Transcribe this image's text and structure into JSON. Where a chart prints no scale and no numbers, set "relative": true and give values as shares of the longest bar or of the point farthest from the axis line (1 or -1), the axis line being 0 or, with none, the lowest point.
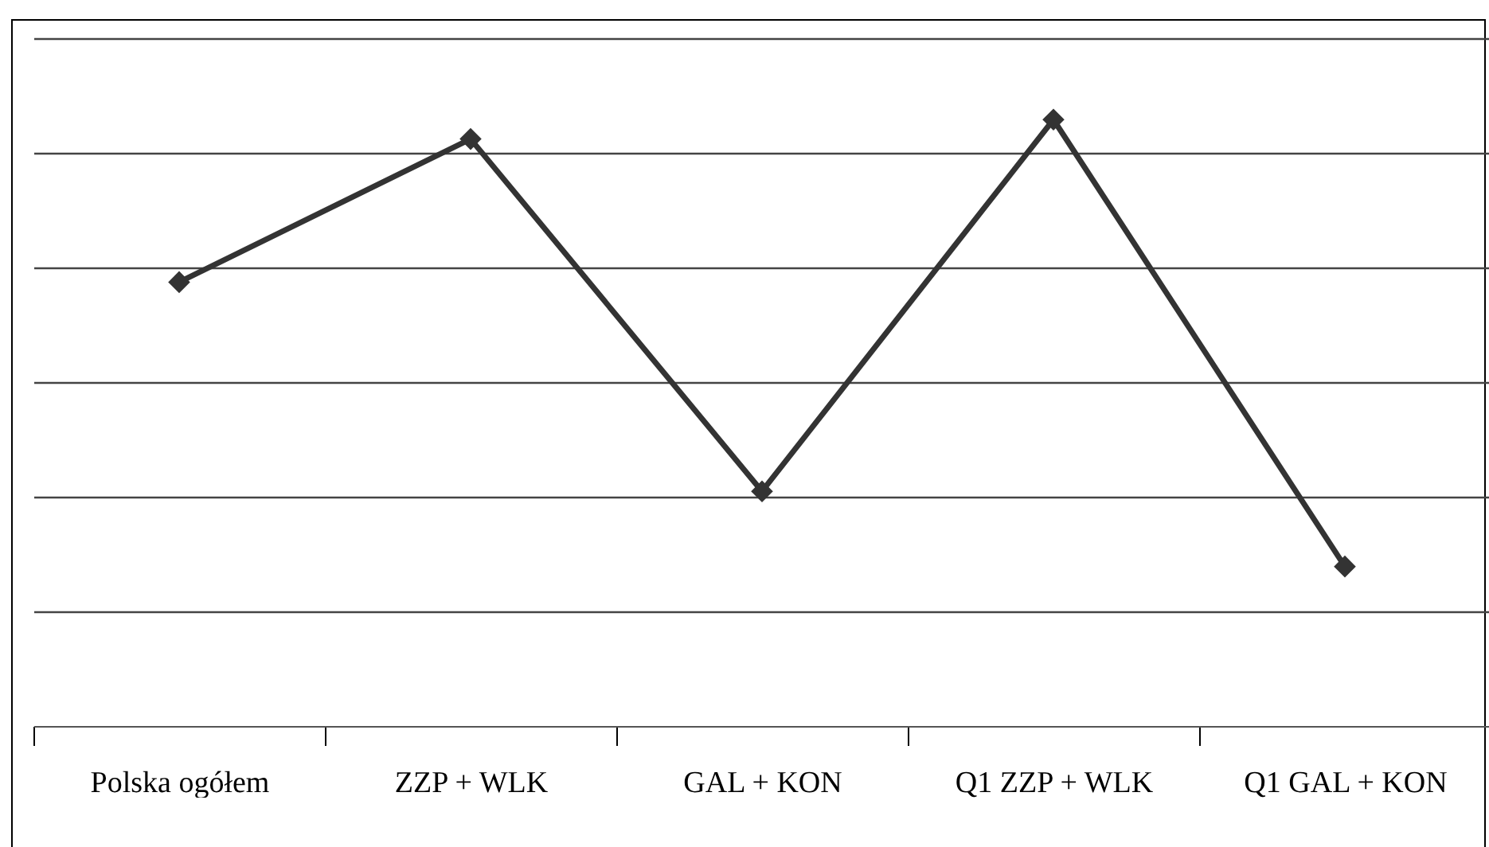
{
  "chart_data": {
    "type": "line",
    "relative": true,
    "categories": [
      "Polska ogółem",
      "ZZP + WLK",
      "GAL + KON",
      "Q1 ZZP + WLK",
      "Q1 GAL + KON"
    ],
    "series": [
      {
        "color": "#333333",
        "values": [
          0.732,
          0.968,
          0.387,
          1,
          0.263
        ]
      }
    ],
    "marker": "diamond",
    "grid": "y"
  }
}
